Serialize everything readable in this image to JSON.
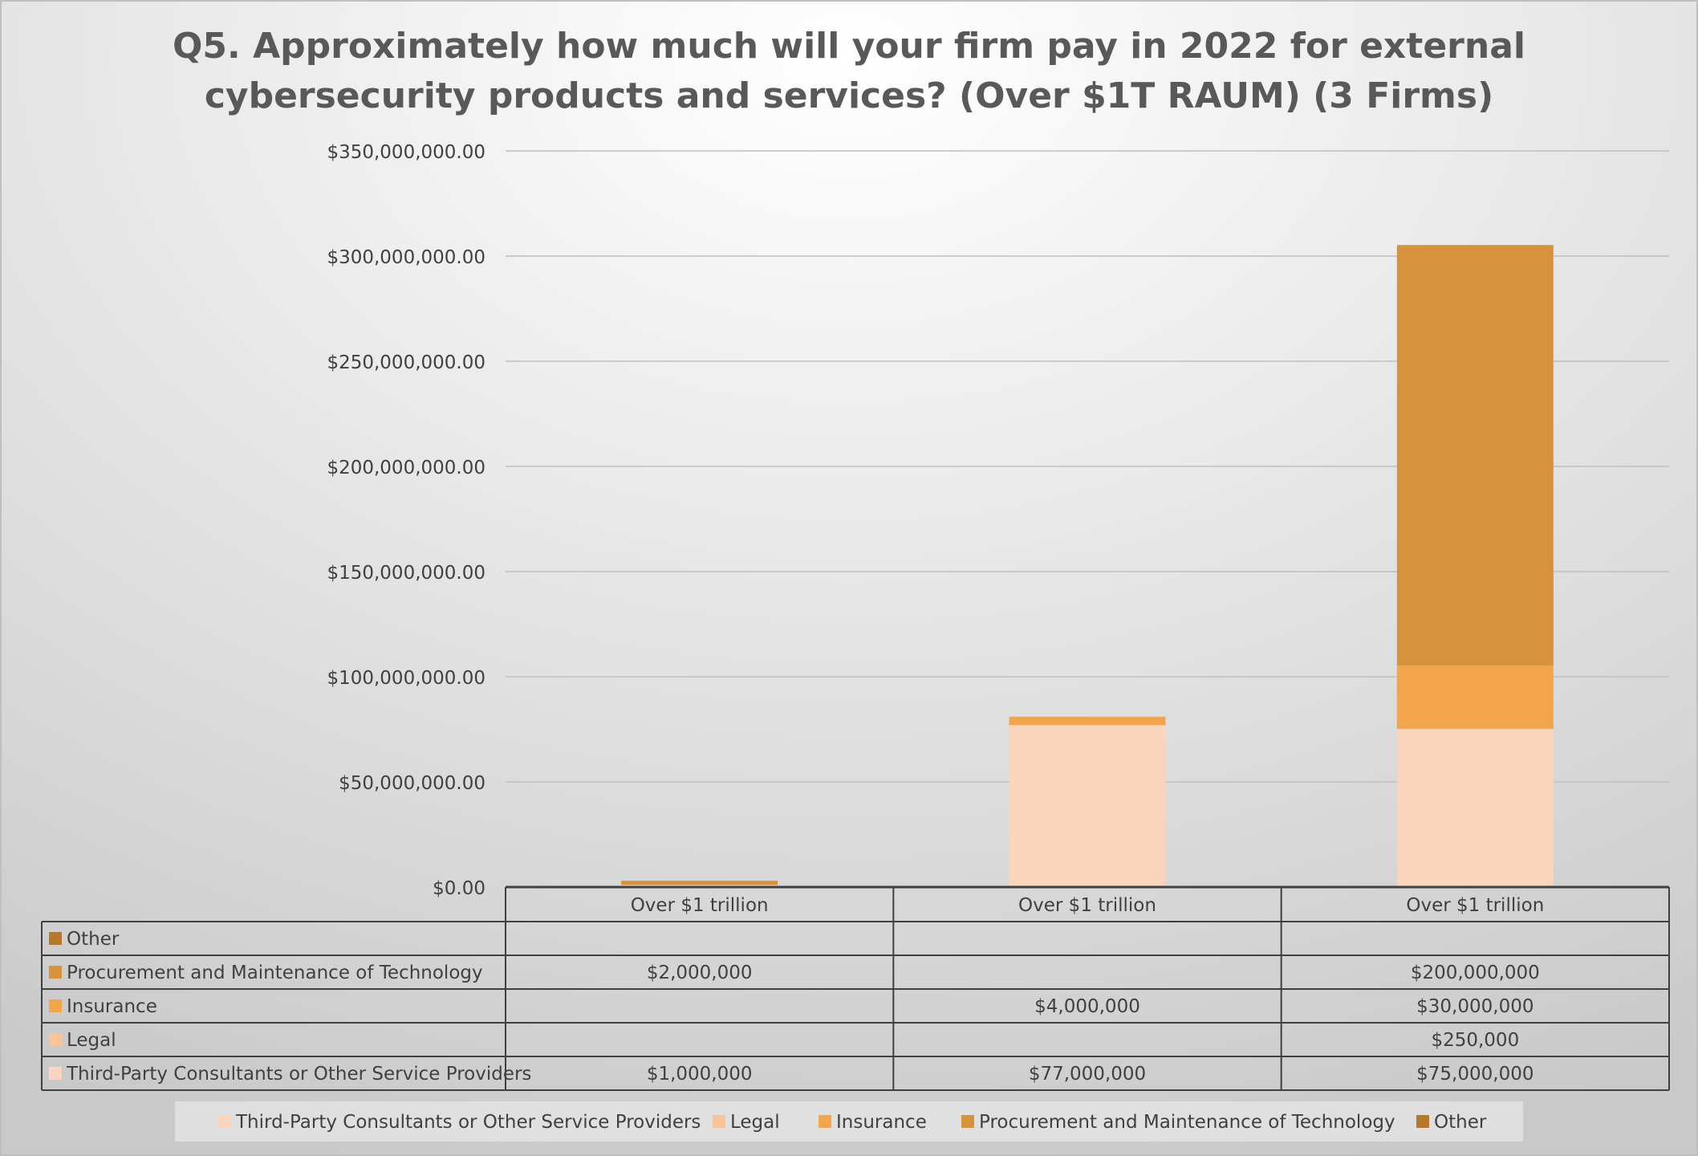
{
  "chart_data": {
    "type": "bar",
    "stacked": true,
    "title": "Q5. Approximately how much will your firm pay in 2022 for external cybersecurity products and services? (Over $1T RAUM) (3 Firms)",
    "title_lines": [
      "Q5. Approximately how much will your firm pay in 2022 for external",
      "cybersecurity products and services? (Over $1T RAUM) (3 Firms)"
    ],
    "categories": [
      "Over $1 trillion",
      "Over $1 trillion",
      "Over $1 trillion"
    ],
    "ylim": [
      0,
      350000000
    ],
    "yticks": [
      0,
      50000000,
      100000000,
      150000000,
      200000000,
      250000000,
      300000000,
      350000000
    ],
    "ytick_labels": [
      "$0.00",
      "$50,000,000.00",
      "$100,000,000.00",
      "$150,000,000.00",
      "$200,000,000.00",
      "$250,000,000.00",
      "$300,000,000.00",
      "$350,000,000.00"
    ],
    "grid": true,
    "legend_position": "bottom",
    "series": [
      {
        "name": "Third-Party Consultants or Other Service Providers",
        "color": "#F8D5BC",
        "values": [
          1000000,
          77000000,
          75000000
        ],
        "labels": [
          "$1,000,000",
          "$77,000,000",
          "$75,000,000"
        ]
      },
      {
        "name": "Legal",
        "color": "#F6C59A",
        "values": [
          null,
          null,
          250000
        ],
        "labels": [
          "",
          "",
          "$250,000"
        ]
      },
      {
        "name": "Insurance",
        "color": "#F2A54A",
        "values": [
          null,
          4000000,
          30000000
        ],
        "labels": [
          "",
          "$4,000,000",
          "$30,000,000"
        ]
      },
      {
        "name": "Procurement and Maintenance of Technology",
        "color": "#D7923E",
        "values": [
          2000000,
          null,
          200000000
        ],
        "labels": [
          "$2,000,000",
          "",
          "$200,000,000"
        ]
      },
      {
        "name": "Other",
        "color": "#B7782E",
        "values": [
          null,
          null,
          null
        ],
        "labels": [
          "",
          "",
          ""
        ]
      }
    ],
    "table_row_order": [
      "Other",
      "Procurement and Maintenance of Technology",
      "Insurance",
      "Legal",
      "Third-Party Consultants or Other Service Providers"
    ],
    "colors": {
      "background_light": "#FFFFFF",
      "background_dark": "#C9C9C9",
      "gridline": "#BFBFBF",
      "table_border": "#404040",
      "title": "#595959",
      "text": "#404040"
    }
  }
}
